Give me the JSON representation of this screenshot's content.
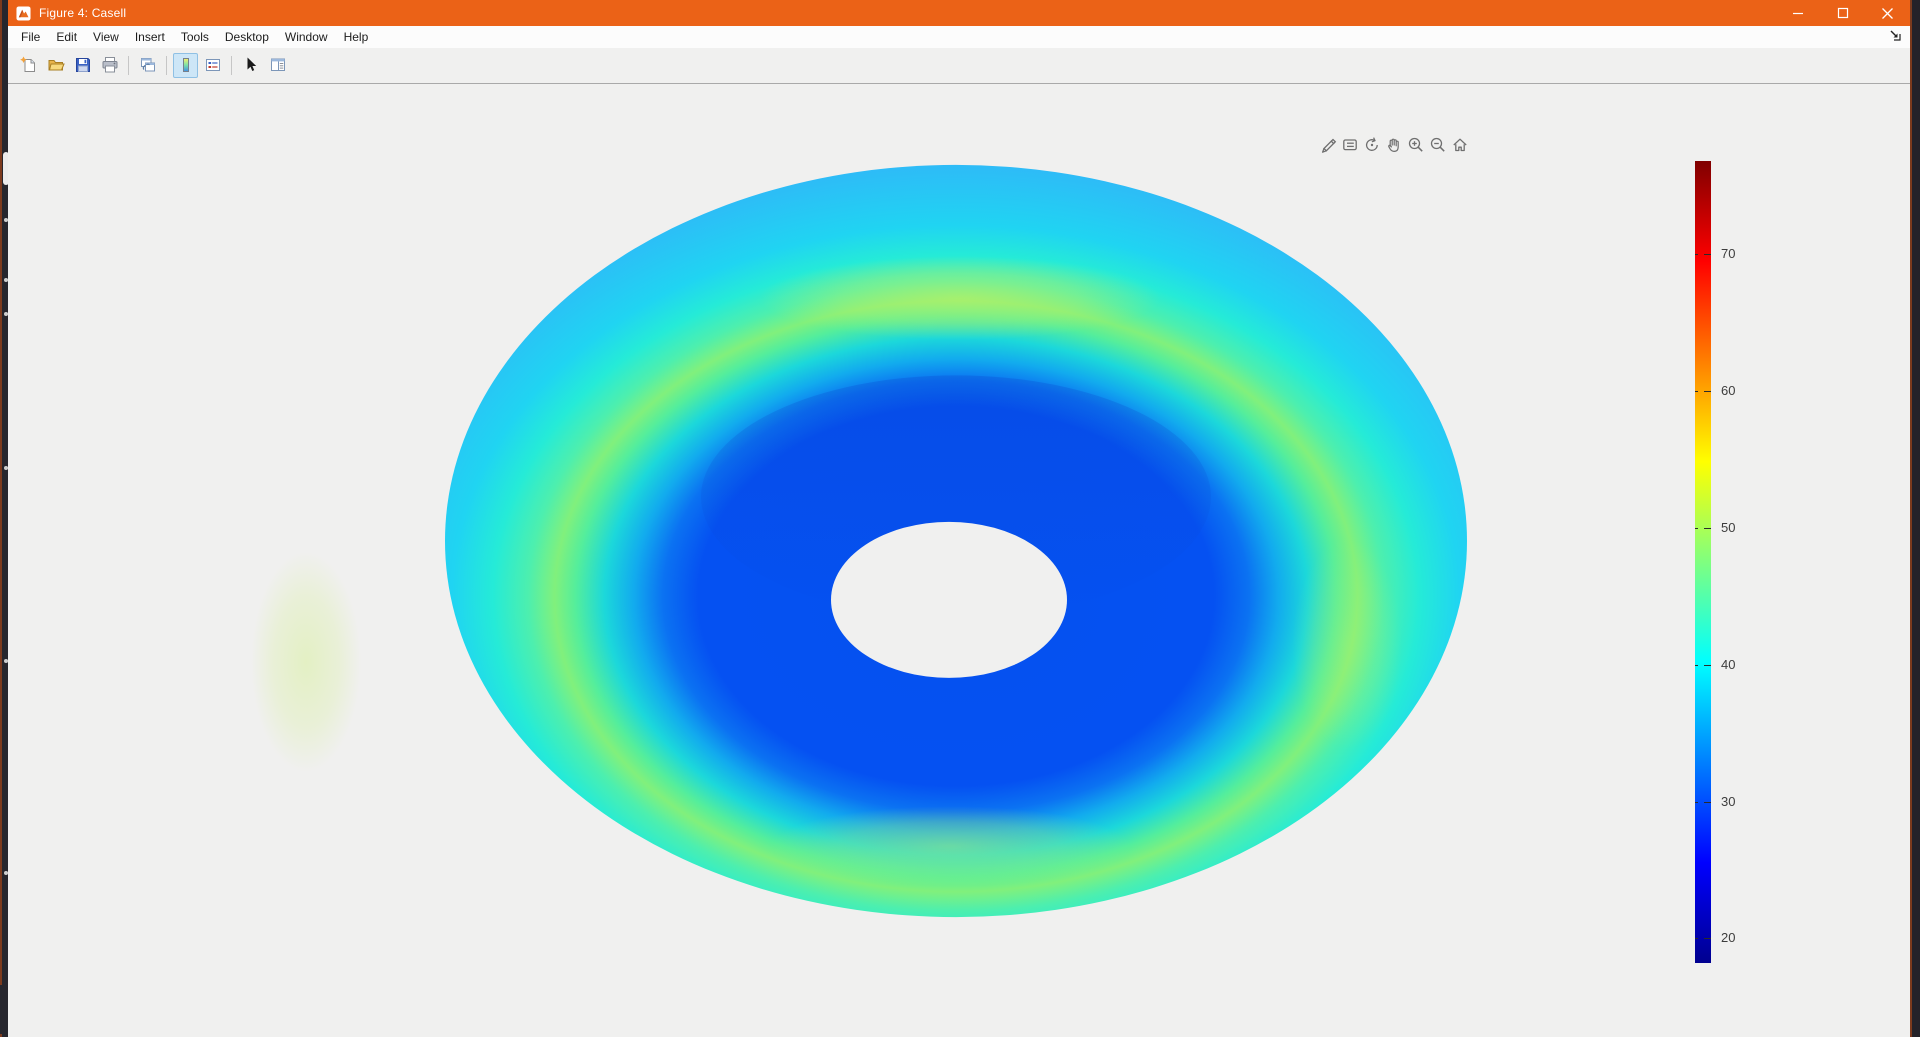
{
  "window": {
    "title": "Figure 4: Casell",
    "controls": [
      "minimize",
      "maximize",
      "close"
    ]
  },
  "menu_bar": {
    "items": [
      "File",
      "Edit",
      "View",
      "Insert",
      "Tools",
      "Desktop",
      "Window",
      "Help"
    ]
  },
  "toolbar": {
    "icons": [
      "new-figure",
      "open-file",
      "save-figure",
      "print-figure",
      "link-plot",
      "insert-colorbar",
      "insert-legend",
      "edit-plot",
      "property-inspector"
    ],
    "pressed": "insert-colorbar"
  },
  "axes_toolbar": {
    "icons": [
      "export",
      "datatips",
      "rotate-3d",
      "pan",
      "zoom-in",
      "zoom-out",
      "restore-view"
    ]
  },
  "chart_data": {
    "type": "surface",
    "title": "",
    "colormap": "jet",
    "colorbar": {
      "orientation": "vertical",
      "position": "right",
      "ticks": [
        70,
        60,
        50,
        40,
        30,
        20
      ],
      "value_range": [
        18.2,
        76.8
      ]
    },
    "surface": {
      "shape": "annular 3D crater surface viewed from above with empty central hole",
      "outer_rim_value": 40,
      "ring_peak_value": 50,
      "inner_crater_value": 28,
      "outer_ring_values": "approx 38-52 (cyan to green-yellow band)",
      "inner_crater_values": "approx 26-32 (deep blue)",
      "hole": "no data - figure background visible"
    }
  },
  "colors": {
    "titlebar_orange": "#EB6217",
    "canvas_bg": "#F0F0EF",
    "menu_bg": "#FCFCFC",
    "edge_dark": "#26262D",
    "edge_accent": "#7C3A1D",
    "jet_top": "#800000",
    "jet_bottom": "#00008F",
    "crater_blue": "#0551F2",
    "ring_green": "#81F07C",
    "rim_cyan": "#2EBBF7"
  }
}
